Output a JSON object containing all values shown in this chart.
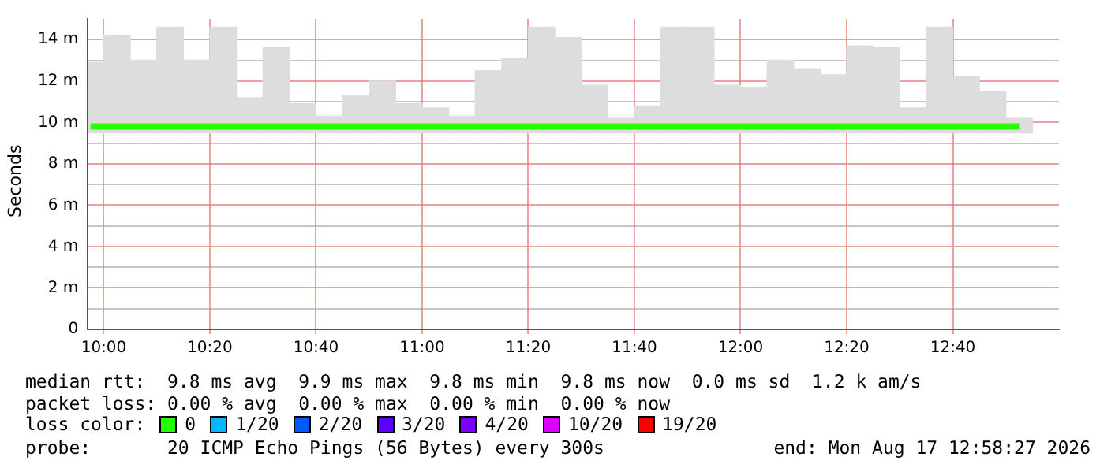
{
  "chart_data": {
    "type": "bar",
    "ylabel": "Seconds",
    "legend_title": "loss color:",
    "legend": "bottom",
    "grid": true,
    "x": [
      9.9583,
      10.0417,
      10.125,
      10.2083,
      10.2917,
      10.375,
      10.4583,
      10.5417,
      10.625,
      10.7083,
      10.7917,
      10.875,
      10.9583,
      11.0417,
      11.125,
      11.2083,
      11.2917,
      11.375,
      11.4583,
      11.5417,
      11.625,
      11.7083,
      11.7917,
      11.875,
      11.9583,
      12.0417,
      12.125,
      12.2083,
      12.2917,
      12.375,
      12.4583,
      12.5417,
      12.625,
      12.7083,
      12.7917,
      12.875
    ],
    "series": [
      {
        "color": "#dddddd",
        "base": [
          9.5,
          9.5,
          9.5,
          9.5,
          9.5,
          9.5,
          9.5,
          9.5,
          9.5,
          9.5,
          9.5,
          9.5,
          9.5,
          9.5,
          9.5,
          9.5,
          9.5,
          9.5,
          9.5,
          9.5,
          9.5,
          9.5,
          9.5,
          9.5,
          9.5,
          9.5,
          9.5,
          9.5,
          9.5,
          9.5,
          9.5,
          9.5,
          9.5,
          9.5,
          9.5,
          9.5
        ],
        "values": [
          3.4,
          4.7,
          3.5,
          5.1,
          3.5,
          5.1,
          1.7,
          4.1,
          1.4,
          0.8,
          1.8,
          2.5,
          1.4,
          1.2,
          0.8,
          3.0,
          3.6,
          5.1,
          4.6,
          2.3,
          0.7,
          1.3,
          5.1,
          5.1,
          2.3,
          2.2,
          3.5,
          3.1,
          2.8,
          4.2,
          4.1,
          1.2,
          5.1,
          2.7,
          2.0,
          0.7
        ]
      },
      {
        "type": "step",
        "name": "0",
        "color": "#26ff00",
        "values": [
          9.8,
          9.8,
          9.8,
          9.8,
          9.8,
          9.8,
          9.8,
          9.8,
          9.8,
          9.8,
          9.8,
          9.8,
          9.8,
          9.8,
          9.8,
          9.8,
          9.8,
          9.8,
          9.8,
          9.8,
          9.8,
          9.8,
          9.8,
          9.8,
          9.8,
          9.8,
          9.8,
          9.8,
          9.8,
          9.8,
          9.8,
          9.8,
          9.8,
          9.8,
          9.8,
          9.8
        ]
      },
      {
        "type": "step",
        "name": "1/20",
        "color": "#00b8ff",
        "values": [
          null,
          null,
          null,
          null,
          null,
          null,
          null,
          null,
          null,
          null,
          null,
          null,
          null,
          null,
          null,
          null,
          null,
          null,
          null,
          null,
          null,
          null,
          null,
          null,
          null,
          null,
          null,
          null,
          null,
          null,
          null,
          null,
          null,
          null,
          null,
          null
        ]
      },
      {
        "type": "step",
        "name": "2/20",
        "color": "#0059ff",
        "values": [
          null,
          null,
          null,
          null,
          null,
          null,
          null,
          null,
          null,
          null,
          null,
          null,
          null,
          null,
          null,
          null,
          null,
          null,
          null,
          null,
          null,
          null,
          null,
          null,
          null,
          null,
          null,
          null,
          null,
          null,
          null,
          null,
          null,
          null,
          null,
          null
        ]
      },
      {
        "type": "step",
        "name": "3/20",
        "color": "#5e00ff",
        "values": [
          null,
          null,
          null,
          null,
          null,
          null,
          null,
          null,
          null,
          null,
          null,
          null,
          null,
          null,
          null,
          null,
          null,
          null,
          null,
          null,
          null,
          null,
          null,
          null,
          null,
          null,
          null,
          null,
          null,
          null,
          null,
          null,
          null,
          null,
          null,
          null
        ]
      },
      {
        "type": "step",
        "name": "4/20",
        "color": "#7e00ff",
        "values": [
          null,
          null,
          null,
          null,
          null,
          null,
          null,
          null,
          null,
          null,
          null,
          null,
          null,
          null,
          null,
          null,
          null,
          null,
          null,
          null,
          null,
          null,
          null,
          null,
          null,
          null,
          null,
          null,
          null,
          null,
          null,
          null,
          null,
          null,
          null,
          null
        ]
      },
      {
        "type": "step",
        "name": "10/20",
        "color": "#dd00ff",
        "values": [
          null,
          null,
          null,
          null,
          null,
          null,
          null,
          null,
          null,
          null,
          null,
          null,
          null,
          null,
          null,
          null,
          null,
          null,
          null,
          null,
          null,
          null,
          null,
          null,
          null,
          null,
          null,
          null,
          null,
          null,
          null,
          null,
          null,
          null,
          null,
          null
        ]
      },
      {
        "type": "step",
        "name": "19/20",
        "color": "#ff0000",
        "values": [
          null,
          null,
          null,
          null,
          null,
          null,
          null,
          null,
          null,
          null,
          null,
          null,
          null,
          null,
          null,
          null,
          null,
          null,
          null,
          null,
          null,
          null,
          null,
          null,
          null,
          null,
          null,
          null,
          null,
          null,
          null,
          null,
          null,
          null,
          null,
          null
        ]
      }
    ],
    "xlim": [
      9.95,
      13.0
    ],
    "xticks": [
      {
        "value": 10,
        "label": "10:00"
      },
      {
        "value": 10.3333,
        "label": "10:20"
      },
      {
        "value": 10.6667,
        "label": "10:40"
      },
      {
        "value": 11,
        "label": "11:00"
      },
      {
        "value": 11.3333,
        "label": "11:20"
      },
      {
        "value": 11.6667,
        "label": "11:40"
      },
      {
        "value": 12,
        "label": "12:00"
      },
      {
        "value": 12.3333,
        "label": "12:20"
      },
      {
        "value": 12.6667,
        "label": "12:40"
      }
    ],
    "ylim": [
      0,
      15
    ],
    "yticks": [
      0,
      {
        "value": 1,
        "label": null
      },
      {
        "value": 2,
        "label": "2 m"
      },
      {
        "value": 3,
        "label": null
      },
      {
        "value": 4,
        "label": "4 m"
      },
      {
        "value": 5,
        "label": null
      },
      {
        "value": 6,
        "label": "6 m"
      },
      {
        "value": 7,
        "label": null
      },
      {
        "value": 8,
        "label": "8 m"
      },
      {
        "value": 9,
        "label": null
      },
      {
        "value": 10,
        "label": "10 m"
      },
      {
        "value": 11,
        "label": null
      },
      {
        "value": 12,
        "label": "12 m"
      },
      {
        "value": 13,
        "label": null
      },
      {
        "value": 14,
        "label": "14 m"
      }
    ],
    "annotations": [
      "median rtt:  9.8 ms avg  9.9 ms max  9.8 ms min  9.8 ms now  0.0 ms sd  1.2 k am/s",
      "packet loss: 0.00 % avg  0.00 % max  0.00 % min  0.00 % now",
      "probe:       20 ICMP Echo Pings (56 Bytes) every 300s",
      "end: Mon Aug 17 12:58:27 2026"
    ]
  }
}
